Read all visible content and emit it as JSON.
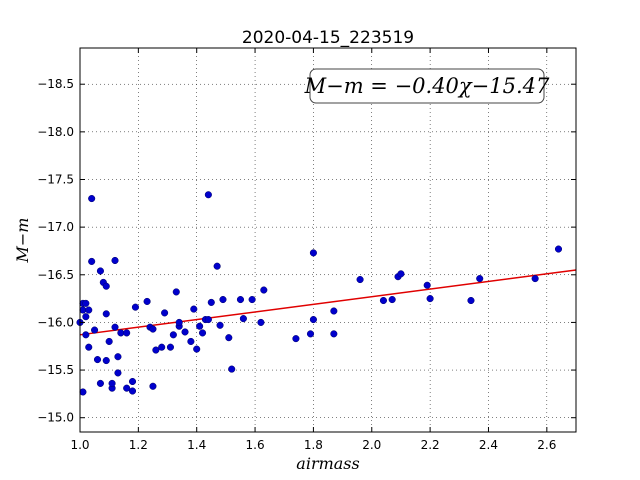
{
  "chart_data": {
    "type": "scatter",
    "title": "2020-04-15_223519",
    "xlabel": "airmass",
    "ylabel": "M−m",
    "xlim": [
      1.0,
      2.7
    ],
    "ylim": [
      -18.88,
      -14.85
    ],
    "y_inverted": true,
    "grid": true,
    "xticks": [
      1.0,
      1.2,
      1.4,
      1.6,
      1.8,
      2.0,
      2.2,
      2.4,
      2.6
    ],
    "xtick_labels": [
      "1.0",
      "1.2",
      "1.4",
      "1.6",
      "1.8",
      "2.0",
      "2.2",
      "2.4",
      "2.6"
    ],
    "yticks": [
      -15.0,
      -15.5,
      -16.0,
      -16.5,
      -17.0,
      -17.5,
      -18.0,
      -18.5
    ],
    "ytick_labels": [
      "−15.0",
      "−15.5",
      "−16.0",
      "−16.5",
      "−17.0",
      "−17.5",
      "−18.0",
      "−18.5"
    ],
    "annotation": "M−m = −0.40χ−15.47",
    "fit": {
      "slope": -0.4,
      "intercept": -15.47,
      "color": "#e00000"
    },
    "point_color": "#0000cc",
    "points": [
      [
        1.0,
        -16.0
      ],
      [
        1.01,
        -16.13
      ],
      [
        1.01,
        -16.2
      ],
      [
        1.01,
        -15.27
      ],
      [
        1.02,
        -16.06
      ],
      [
        1.02,
        -16.2
      ],
      [
        1.02,
        -15.87
      ],
      [
        1.03,
        -15.74
      ],
      [
        1.03,
        -16.13
      ],
      [
        1.04,
        -16.64
      ],
      [
        1.04,
        -17.3
      ],
      [
        1.05,
        -15.92
      ],
      [
        1.06,
        -15.61
      ],
      [
        1.07,
        -15.36
      ],
      [
        1.07,
        -16.54
      ],
      [
        1.08,
        -16.42
      ],
      [
        1.09,
        -16.09
      ],
      [
        1.09,
        -15.6
      ],
      [
        1.09,
        -16.38
      ],
      [
        1.1,
        -15.8
      ],
      [
        1.11,
        -15.31
      ],
      [
        1.11,
        -15.36
      ],
      [
        1.12,
        -16.65
      ],
      [
        1.12,
        -15.95
      ],
      [
        1.13,
        -15.47
      ],
      [
        1.13,
        -15.64
      ],
      [
        1.14,
        -15.89
      ],
      [
        1.16,
        -15.31
      ],
      [
        1.16,
        -15.89
      ],
      [
        1.18,
        -15.28
      ],
      [
        1.18,
        -15.38
      ],
      [
        1.19,
        -16.16
      ],
      [
        1.23,
        -16.22
      ],
      [
        1.24,
        -15.95
      ],
      [
        1.25,
        -15.93
      ],
      [
        1.25,
        -15.33
      ],
      [
        1.26,
        -15.71
      ],
      [
        1.28,
        -15.74
      ],
      [
        1.29,
        -16.1
      ],
      [
        1.31,
        -15.74
      ],
      [
        1.32,
        -15.87
      ],
      [
        1.33,
        -16.32
      ],
      [
        1.34,
        -15.96
      ],
      [
        1.34,
        -16.0
      ],
      [
        1.36,
        -15.9
      ],
      [
        1.38,
        -15.8
      ],
      [
        1.39,
        -16.14
      ],
      [
        1.4,
        -15.72
      ],
      [
        1.41,
        -15.96
      ],
      [
        1.42,
        -15.89
      ],
      [
        1.43,
        -16.03
      ],
      [
        1.44,
        -16.03
      ],
      [
        1.44,
        -17.34
      ],
      [
        1.45,
        -16.21
      ],
      [
        1.47,
        -16.59
      ],
      [
        1.48,
        -15.97
      ],
      [
        1.49,
        -16.24
      ],
      [
        1.51,
        -15.84
      ],
      [
        1.52,
        -15.51
      ],
      [
        1.55,
        -16.24
      ],
      [
        1.56,
        -16.04
      ],
      [
        1.59,
        -16.24
      ],
      [
        1.62,
        -16.0
      ],
      [
        1.63,
        -16.34
      ],
      [
        1.74,
        -15.83
      ],
      [
        1.79,
        -15.88
      ],
      [
        1.8,
        -16.03
      ],
      [
        1.8,
        -16.73
      ],
      [
        1.87,
        -16.12
      ],
      [
        1.87,
        -15.88
      ],
      [
        1.96,
        -16.45
      ],
      [
        2.04,
        -16.23
      ],
      [
        2.07,
        -16.24
      ],
      [
        2.09,
        -16.48
      ],
      [
        2.1,
        -16.51
      ],
      [
        2.19,
        -16.39
      ],
      [
        2.2,
        -16.25
      ],
      [
        2.34,
        -16.23
      ],
      [
        2.37,
        -16.46
      ],
      [
        2.56,
        -16.46
      ],
      [
        2.64,
        -16.77
      ]
    ]
  }
}
